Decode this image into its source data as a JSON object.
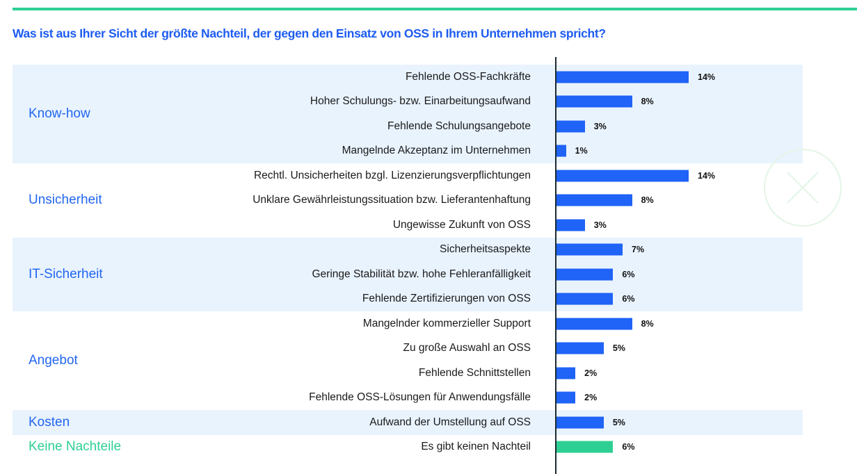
{
  "title": "Was ist aus Ihrer Sicht der größte Nachteil, der gegen den Einsatz von OSS in Ihrem Unternehmen spricht?",
  "colors": {
    "accent_green": "#2ecf93",
    "bar_blue": "#1f63f7",
    "title_blue": "#1d5cf0",
    "band_shade": "#e9f3fe"
  },
  "watermark_icon": "close-circle-icon",
  "chart_data": {
    "type": "bar",
    "orientation": "horizontal",
    "title": "Was ist aus Ihrer Sicht der größte Nachteil, der gegen den Einsatz von OSS in Ihrem Unternehmen spricht?",
    "xlabel": "",
    "ylabel": "",
    "unit": "%",
    "xlim": [
      0,
      14
    ],
    "grid": false,
    "legend": "none",
    "groups": [
      {
        "name": "Know-how",
        "shaded": true,
        "color": "blue",
        "items": [
          {
            "label": "Fehlende OSS-Fachkräfte",
            "value": 14,
            "display": "14%"
          },
          {
            "label": "Hoher Schulungs- bzw. Einarbeitungsaufwand",
            "value": 8,
            "display": "8%"
          },
          {
            "label": "Fehlende Schulungsangebote",
            "value": 3,
            "display": "3%"
          },
          {
            "label": "Mangelnde Akzeptanz im Unternehmen",
            "value": 1,
            "display": "1%"
          }
        ]
      },
      {
        "name": "Unsicherheit",
        "shaded": false,
        "color": "blue",
        "items": [
          {
            "label": "Rechtl. Unsicherheiten bzgl. Lizenzierungsverpflichtungen",
            "value": 14,
            "display": "14%"
          },
          {
            "label": "Unklare Gewährleistungssituation bzw. Lieferantenhaftung",
            "value": 8,
            "display": "8%"
          },
          {
            "label": "Ungewisse Zukunft von OSS",
            "value": 3,
            "display": "3%"
          }
        ]
      },
      {
        "name": "IT-Sicherheit",
        "shaded": true,
        "color": "blue",
        "items": [
          {
            "label": "Sicherheitsaspekte",
            "value": 7,
            "display": "7%"
          },
          {
            "label": "Geringe Stabilität bzw. hohe Fehleranfälligkeit",
            "value": 6,
            "display": "6%"
          },
          {
            "label": "Fehlende Zertifizierungen von OSS",
            "value": 6,
            "display": "6%"
          }
        ]
      },
      {
        "name": "Angebot",
        "shaded": false,
        "color": "blue",
        "items": [
          {
            "label": "Mangelnder kommerzieller Support",
            "value": 8,
            "display": "8%"
          },
          {
            "label": "Zu große Auswahl an OSS",
            "value": 5,
            "display": "5%"
          },
          {
            "label": "Fehlende Schnittstellen",
            "value": 2,
            "display": "2%"
          },
          {
            "label": "Fehlende OSS-Lösungen für Anwendungsfälle",
            "value": 2,
            "display": "2%"
          }
        ]
      },
      {
        "name": "Kosten",
        "shaded": true,
        "color": "blue",
        "items": [
          {
            "label": "Aufwand der Umstellung auf OSS",
            "value": 5,
            "display": "5%"
          }
        ]
      },
      {
        "name": "Keine Nachteile",
        "shaded": false,
        "color": "green",
        "items": [
          {
            "label": "Es gibt keinen Nachteil",
            "value": 6,
            "display": "6%"
          }
        ]
      }
    ]
  }
}
